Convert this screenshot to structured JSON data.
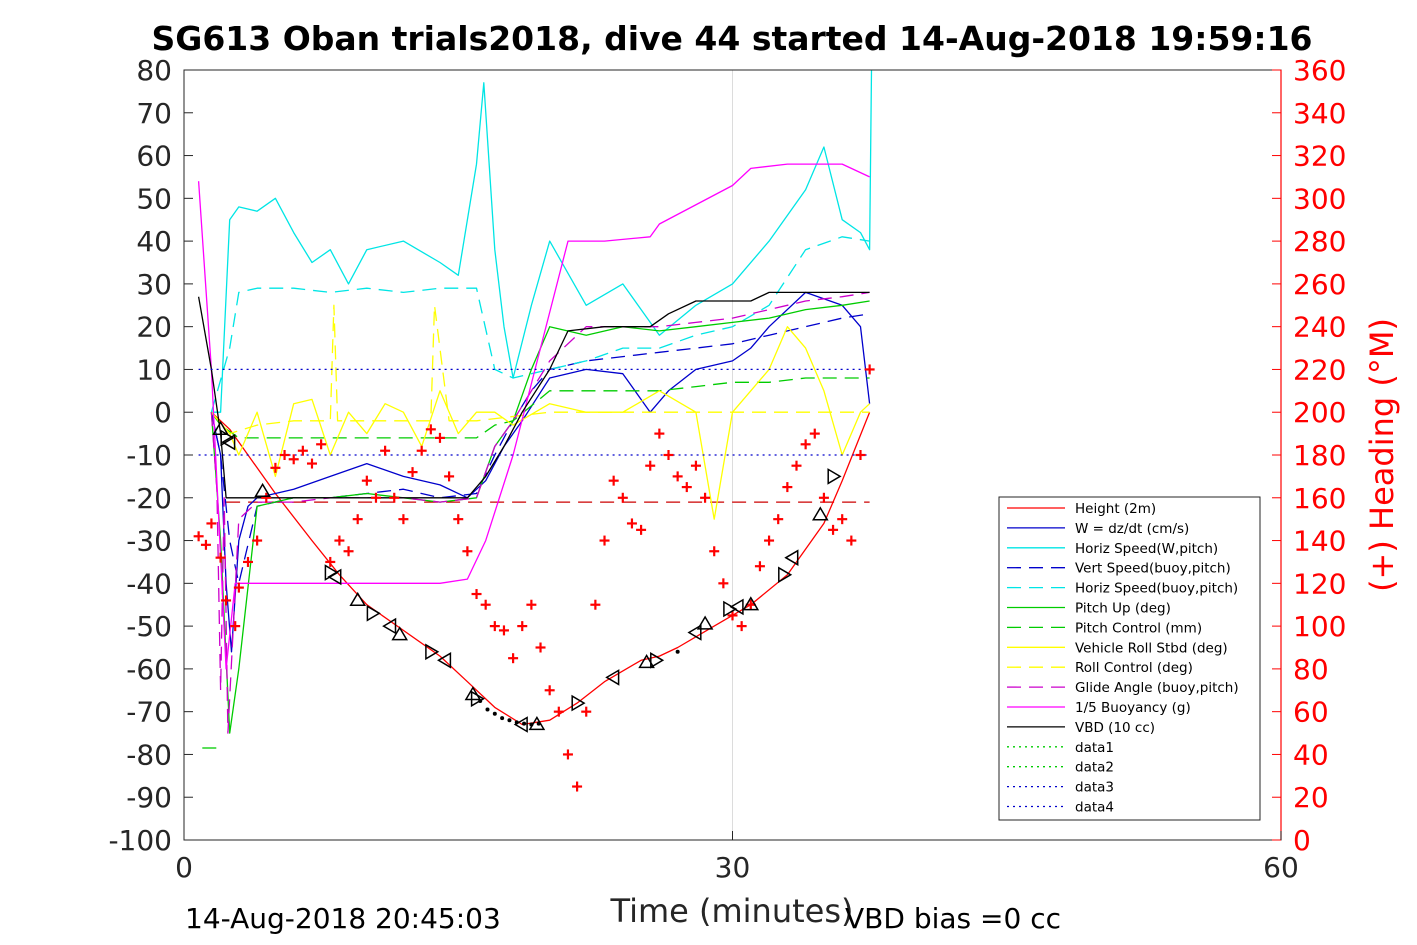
{
  "chart_data": {
    "type": "line",
    "title": "SG613 Oban trials2018, dive 44 started 14-Aug-2018 19:59:16",
    "xlabel": "Time (minutes)",
    "ylabel": "",
    "ylabel_right": "(+) Heading (°M)",
    "xlim": [
      0,
      60
    ],
    "ylim": [
      -100,
      80
    ],
    "ylim_right": [
      0,
      360
    ],
    "x_ticks": [
      "0",
      "30",
      "60"
    ],
    "y_ticks": [
      "80",
      "70",
      "60",
      "50",
      "40",
      "30",
      "20",
      "10",
      "0",
      "-10",
      "-20",
      "-30",
      "-40",
      "-50",
      "-60",
      "-70",
      "-80",
      "-90",
      "-100"
    ],
    "y_ticks_right": [
      "360",
      "340",
      "320",
      "300",
      "280",
      "260",
      "240",
      "220",
      "200",
      "180",
      "160",
      "140",
      "120",
      "100",
      "80",
      "60",
      "40",
      "20",
      "0"
    ],
    "grid": "x only",
    "legend_position": "lower-right",
    "footer_left": "14-Aug-2018 20:45:03",
    "footer_right": "VBD bias =0 cc",
    "series": [
      {
        "name": "Height (2m)",
        "color": "#ff0000",
        "style": "solid",
        "x": [
          1.5,
          2.5,
          3.5,
          5,
          7,
          8.5,
          10,
          12,
          14,
          15.5,
          17,
          18.5,
          20,
          21.5,
          23,
          25,
          26,
          27,
          29,
          31,
          33,
          35,
          36,
          37.5
        ],
        "y": [
          0,
          -4,
          -10,
          -19,
          -30,
          -38,
          -45,
          -51,
          -57,
          -63,
          -69,
          -73,
          -72,
          -68,
          -63,
          -58,
          -57,
          -55,
          -50,
          -45,
          -38,
          -26,
          -16,
          0
        ]
      },
      {
        "name": "W = dz/dt (cm/s)",
        "color": "#0000cc",
        "style": "solid",
        "x": [
          1.5,
          2,
          2.3,
          2.6,
          3,
          3.5,
          4,
          6,
          8,
          10,
          12,
          14,
          15.5,
          16.5,
          17.5,
          18.5,
          20,
          22,
          24,
          25.5,
          26.5,
          28,
          30,
          31,
          32,
          34,
          36,
          37,
          37.5
        ],
        "y": [
          0,
          -10,
          -40,
          -56,
          -30,
          -22,
          -20,
          -18,
          -15,
          -12,
          -15,
          -17,
          -20,
          -16,
          -8,
          -2,
          8,
          10,
          9,
          0,
          5,
          10,
          12,
          15,
          20,
          28,
          25,
          20,
          2
        ]
      },
      {
        "name": "Horiz Speed(W,pitch)",
        "color": "#00e5e5",
        "style": "solid",
        "x": [
          1.5,
          2,
          2.5,
          3,
          4,
          5,
          6,
          7,
          8,
          9,
          10,
          12,
          14,
          15,
          16,
          16.4,
          17,
          17.5,
          18,
          19,
          20,
          22,
          24,
          26,
          28,
          30,
          32,
          34,
          35,
          36,
          37,
          37.5,
          37.6
        ],
        "y": [
          0,
          0,
          45,
          48,
          47,
          50,
          42,
          35,
          38,
          30,
          38,
          40,
          35,
          32,
          58,
          77,
          38,
          20,
          8,
          25,
          40,
          25,
          30,
          18,
          25,
          30,
          40,
          52,
          62,
          45,
          42,
          38,
          80
        ]
      },
      {
        "name": "Vert Speed(buoy,pitch)",
        "color": "#0000cc",
        "style": "dashed",
        "x": [
          1.5,
          2,
          2.5,
          3,
          4,
          6,
          8,
          10,
          12,
          14,
          16,
          17,
          18,
          19,
          20,
          22,
          24,
          26,
          28,
          30,
          32,
          34,
          36,
          37.5
        ],
        "y": [
          0,
          -10,
          -30,
          -40,
          -22,
          -20,
          -20,
          -19,
          -18,
          -20,
          -19,
          -10,
          -2,
          5,
          10,
          12,
          13,
          14,
          15,
          16,
          18,
          20,
          22,
          23
        ]
      },
      {
        "name": "Horiz Speed(buoy,pitch)",
        "color": "#00e5e5",
        "style": "dashed",
        "x": [
          1.5,
          2.5,
          3,
          4,
          6,
          8,
          10,
          12,
          14,
          16,
          17,
          18,
          20,
          22,
          24,
          26,
          28,
          30,
          32,
          34,
          36,
          37.5
        ],
        "y": [
          0,
          15,
          28,
          29,
          29,
          28,
          29,
          28,
          29,
          29,
          10,
          8,
          10,
          12,
          15,
          15,
          18,
          20,
          25,
          38,
          41,
          40
        ]
      },
      {
        "name": "Pitch Up (deg)",
        "color": "#00cc00",
        "style": "solid",
        "x": [
          1.5,
          2,
          2.5,
          3,
          4,
          6,
          8,
          10,
          12,
          14,
          16,
          17,
          18,
          19,
          20,
          22,
          24,
          26,
          28,
          30,
          32,
          34,
          36,
          37.5
        ],
        "y": [
          0,
          -30,
          -75,
          -60,
          -22,
          -20,
          -20,
          -19,
          -20,
          -21,
          -20,
          -8,
          -2,
          10,
          20,
          18,
          20,
          19,
          20,
          21,
          22,
          24,
          25,
          26
        ]
      },
      {
        "name": "Pitch Control (mm)",
        "color": "#00cc00",
        "style": "dashed",
        "x": [
          1.5,
          2,
          3,
          6,
          10,
          12,
          14,
          16,
          17,
          18,
          20,
          24,
          26,
          28,
          30,
          32,
          34,
          36,
          37.5
        ],
        "y": [
          0,
          -3,
          -6,
          -6,
          -6,
          -6,
          -6,
          -6,
          -3,
          -2,
          5,
          5,
          5,
          6,
          7,
          7,
          8,
          8,
          8
        ]
      },
      {
        "name": "Vehicle Roll Stbd (deg)",
        "color": "#ffff00",
        "style": "solid",
        "x": [
          1.5,
          2.5,
          3,
          4,
          5,
          6,
          7,
          8,
          9,
          10,
          11,
          12,
          13,
          14,
          15,
          16,
          17,
          18,
          20,
          22,
          24,
          26,
          28,
          29,
          30,
          31,
          32,
          33,
          34,
          35,
          36,
          37,
          37.5
        ],
        "y": [
          0,
          -5,
          -10,
          0,
          -15,
          2,
          3,
          -10,
          0,
          -5,
          2,
          0,
          -8,
          5,
          -5,
          0,
          0,
          -3,
          2,
          0,
          0,
          5,
          0,
          -25,
          0,
          5,
          10,
          20,
          15,
          5,
          -10,
          0,
          2
        ]
      },
      {
        "name": "Roll Control (deg)",
        "color": "#ffff00",
        "style": "dashed",
        "x": [
          1.5,
          2.5,
          4,
          6,
          8,
          8.2,
          8.4,
          10,
          12,
          13.5,
          13.7,
          14.5,
          16,
          20,
          24,
          28,
          30,
          34,
          37.5
        ],
        "y": [
          0,
          -5,
          -3,
          -2,
          -2,
          25,
          -2,
          -2,
          -2,
          -2,
          25,
          -2,
          -2,
          0,
          0,
          0,
          0,
          0,
          0
        ]
      },
      {
        "name": "Glide Angle (buoy,pitch)",
        "color": "#cc00cc",
        "style": "dashed",
        "x": [
          1.5,
          1.8,
          2,
          2.2,
          2.4,
          3,
          4,
          6,
          8,
          10,
          12,
          14,
          16,
          17,
          18,
          20,
          22,
          24,
          26,
          28,
          30,
          32,
          34,
          36,
          37.5
        ],
        "y": [
          0,
          -18,
          -65,
          -20,
          -75,
          -25,
          -21,
          -21,
          -20,
          -20,
          -20,
          -21,
          -20,
          -8,
          -2,
          12,
          20,
          20,
          20,
          21,
          22,
          24,
          26,
          27,
          28
        ]
      },
      {
        "name": "1/5 Buoyancy (g)",
        "color": "#ff00ff",
        "style": "solid",
        "x": [
          0.8,
          1.5,
          2.3,
          2.8,
          3,
          6,
          10,
          14,
          15.5,
          16.5,
          18,
          19.5,
          21,
          23,
          25.5,
          26,
          30,
          31,
          33,
          36,
          37.5
        ],
        "y": [
          54,
          10,
          -60,
          -40,
          -40,
          -40,
          -40,
          -40,
          -39,
          -30,
          -10,
          15,
          40,
          40,
          41,
          44,
          53,
          57,
          58,
          58,
          55
        ]
      },
      {
        "name": "VBD (10 cc)",
        "color": "#000000",
        "style": "solid",
        "x": [
          0.8,
          1.5,
          2,
          2.3,
          2.8,
          5,
          10,
          15.5,
          16.5,
          17.5,
          18.5,
          20,
          21,
          23,
          25.5,
          26.5,
          28,
          31,
          32,
          36,
          37.5
        ],
        "y": [
          27,
          10,
          -5,
          -20,
          -20,
          -20,
          -20,
          -20,
          -15,
          -8,
          0,
          10,
          19,
          20,
          20,
          23,
          26,
          26,
          28,
          28,
          28
        ]
      },
      {
        "name": "data1",
        "color": "#00cc00",
        "style": "dotted",
        "x": [],
        "y": []
      },
      {
        "name": "data2",
        "color": "#00cc00",
        "style": "dotted",
        "x": [],
        "y": []
      },
      {
        "name": "data3",
        "color": "#0000cc",
        "style": "dotted",
        "x": [
          0.8,
          37.5
        ],
        "y": [
          10,
          10
        ]
      },
      {
        "name": "data4",
        "color": "#0000cc",
        "style": "dotted",
        "x": [
          0.8,
          37.5
        ],
        "y": [
          -10,
          -10
        ]
      }
    ],
    "reference_lines": [
      {
        "color": "#cc0000",
        "style": "dashed",
        "x": [
          2.3,
          37.5
        ],
        "y": [
          -21,
          -21
        ]
      },
      {
        "color": "#00cc00",
        "style": "dashed",
        "x": [
          1,
          1.8
        ],
        "y": [
          -78.5,
          -78.5
        ]
      }
    ],
    "heading_points": {
      "name": "Heading",
      "color": "#ff0000",
      "marker": "+",
      "axis": "right",
      "x": [
        0.8,
        1.2,
        1.5,
        2.0,
        2.3,
        2.8,
        3.0,
        3.5,
        4.0,
        4.5,
        5.0,
        5.5,
        6.0,
        6.5,
        7.0,
        7.5,
        8.0,
        8.5,
        9.0,
        9.5,
        10.0,
        10.5,
        11.0,
        11.5,
        12.0,
        12.5,
        13.0,
        13.5,
        14.0,
        14.5,
        15.0,
        15.5,
        16.0,
        16.5,
        17.0,
        17.5,
        18.0,
        18.5,
        19.0,
        19.5,
        20.0,
        20.5,
        21.0,
        21.5,
        22.0,
        22.5,
        23.0,
        23.5,
        24.0,
        24.5,
        25.0,
        25.5,
        26.0,
        26.5,
        27.0,
        27.5,
        28.0,
        28.5,
        29.0,
        29.5,
        30.0,
        30.5,
        31.0,
        31.5,
        32.0,
        32.5,
        33.0,
        33.5,
        34.0,
        34.5,
        35.0,
        35.5,
        36.0,
        36.5,
        37.0,
        37.5
      ],
      "y": [
        142,
        138,
        148,
        132,
        112,
        100,
        118,
        130,
        140,
        160,
        174,
        180,
        178,
        182,
        176,
        185,
        130,
        140,
        135,
        150,
        168,
        160,
        182,
        160,
        150,
        172,
        182,
        192,
        188,
        170,
        150,
        135,
        115,
        110,
        100,
        98,
        85,
        100,
        110,
        90,
        70,
        60,
        40,
        25,
        60,
        110,
        140,
        168,
        160,
        148,
        145,
        175,
        190,
        180,
        170,
        165,
        175,
        160,
        135,
        120,
        105,
        100,
        110,
        128,
        140,
        150,
        165,
        175,
        185,
        190,
        160,
        145,
        150,
        140,
        180,
        220
      ]
    },
    "track_markers": {
      "marker": "triangle",
      "color": "#000000",
      "x": [
        2.0,
        2.3,
        2.5,
        4.3,
        8.0,
        8.3,
        9.5,
        10.3,
        11.3,
        11.8,
        13.5,
        14.3,
        15.8,
        16.0,
        18.5,
        19.3,
        21.5,
        23.5,
        25.3,
        25.8,
        28.0,
        28.5,
        29.8,
        30.3,
        31.0,
        32.8,
        33.3,
        34.8,
        35.5
      ],
      "y": [
        -4,
        -6,
        -7,
        -18.5,
        -37.5,
        -38.5,
        -44,
        -47,
        -50,
        -52,
        -56,
        -58,
        -66,
        -67,
        -73,
        -73,
        -68,
        -62,
        -58.5,
        -58,
        -51.5,
        -49.5,
        -46,
        -45.5,
        -45,
        -38,
        -34,
        -24,
        -15
      ]
    },
    "track_dots": {
      "color": "#000000",
      "x": [
        16.2,
        16.6,
        17.0,
        17.4,
        17.8,
        18.2,
        18.6,
        19.0,
        19.4,
        27.0
      ],
      "y": [
        -67.5,
        -69.5,
        -70.5,
        -71.5,
        -72,
        -72.5,
        -72.8,
        -73,
        -72.8,
        -56
      ]
    }
  }
}
